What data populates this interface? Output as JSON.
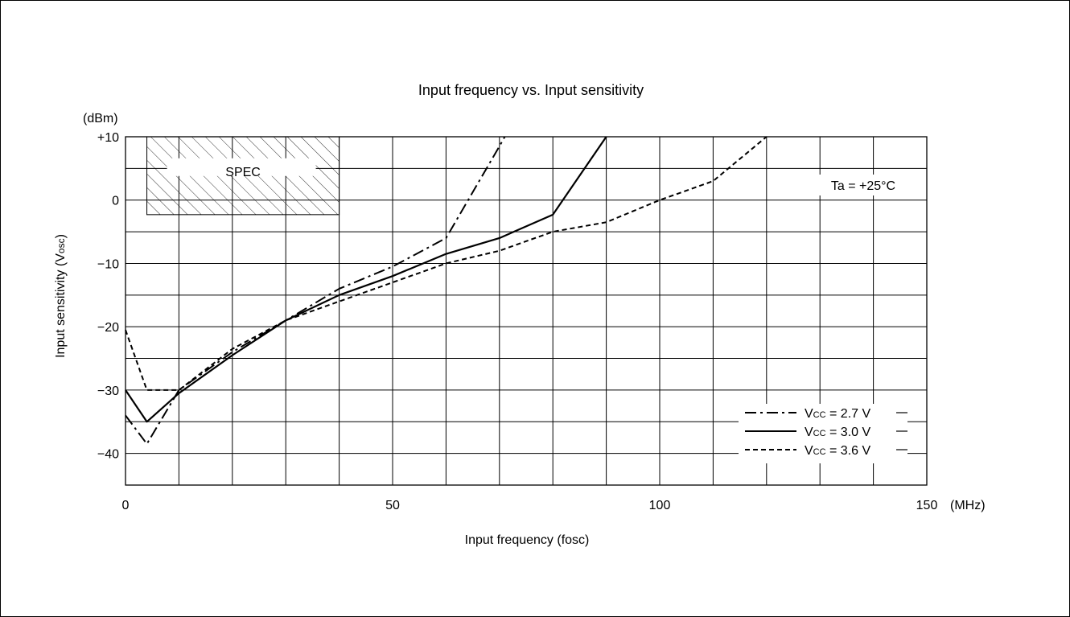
{
  "chart_data": {
    "type": "line",
    "title": "Input frequency vs. Input sensitivity",
    "xlabel": "Input frequency (fosc)",
    "ylabel": "Input sensitivity (Vosc)",
    "ylabel_main": "Input sensitivity (V",
    "ylabel_sub": "osc",
    "ylabel_close": ")",
    "y_unit": "(dBm)",
    "x_unit": "(MHz)",
    "xlim": [
      0,
      150
    ],
    "ylim": [
      -45,
      10
    ],
    "x_ticks": [
      0,
      50,
      100,
      150
    ],
    "x_tick_labels": [
      "0",
      "50",
      "100",
      "150"
    ],
    "y_ticks": [
      10,
      0,
      -10,
      -20,
      -30,
      -40
    ],
    "y_tick_labels": [
      "+10",
      "0",
      "−10",
      "−20",
      "−30",
      "−40"
    ],
    "grid": true,
    "annotations": {
      "spec_label": "SPEC",
      "spec_region": {
        "x": [
          4,
          40
        ],
        "y": [
          -2.3,
          10
        ]
      },
      "temperature": "Ta = +25°C"
    },
    "legend_position": "bottom-right",
    "series": [
      {
        "name": "Vcc = 2.7 V",
        "legend_main": "V",
        "legend_sub": "CC",
        "legend_rest": " = 2.7 V",
        "style": "dash-dot",
        "x": [
          0,
          4,
          10,
          20,
          30,
          40,
          50,
          60,
          70,
          71
        ],
        "y": [
          -34,
          -38.5,
          -30,
          -24,
          -19,
          -14,
          -10.5,
          -6,
          8.5,
          10
        ]
      },
      {
        "name": "Vcc = 3.0 V",
        "legend_main": "V",
        "legend_sub": "CC",
        "legend_rest": " = 3.0 V",
        "style": "solid",
        "x": [
          0,
          4,
          10,
          20,
          30,
          40,
          50,
          60,
          70,
          80,
          90
        ],
        "y": [
          -30,
          -35,
          -30.5,
          -24.5,
          -19,
          -15,
          -12,
          -8.5,
          -6,
          -2.3,
          10
        ]
      },
      {
        "name": "Vcc = 3.6 V",
        "legend_main": "V",
        "legend_sub": "CC",
        "legend_rest": " = 3.6 V",
        "style": "dashed",
        "x": [
          0,
          4,
          10,
          20,
          30,
          40,
          50,
          60,
          70,
          80,
          90,
          100,
          110,
          120
        ],
        "y": [
          -20.5,
          -30,
          -30,
          -23.5,
          -19,
          -16,
          -13,
          -10,
          -8,
          -5,
          -3.5,
          0,
          3,
          10
        ]
      }
    ]
  }
}
